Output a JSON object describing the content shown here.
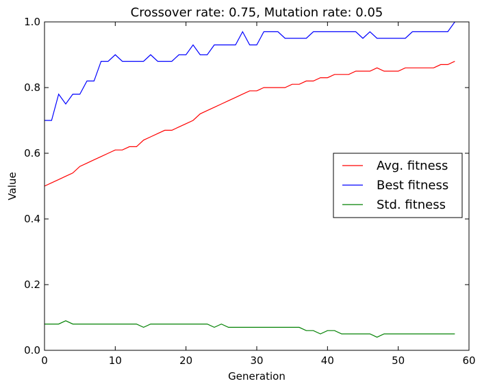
{
  "chart_data": {
    "type": "line",
    "title": "Crossover rate: 0.75, Mutation rate: 0.05",
    "xlabel": "Generation",
    "ylabel": "Value",
    "xlim": [
      0,
      60
    ],
    "ylim": [
      0.0,
      1.0
    ],
    "xticks": [
      0,
      10,
      20,
      30,
      40,
      50,
      60
    ],
    "yticks": [
      0.0,
      0.2,
      0.4,
      0.6,
      0.8,
      1.0
    ],
    "xtick_labels": [
      "0",
      "10",
      "20",
      "30",
      "40",
      "50",
      "60"
    ],
    "ytick_labels": [
      "0.0",
      "0.2",
      "0.4",
      "0.6",
      "0.8",
      "1.0"
    ],
    "grid": false,
    "legend_position": "center-right",
    "x": [
      0,
      1,
      2,
      3,
      4,
      5,
      6,
      7,
      8,
      9,
      10,
      11,
      12,
      13,
      14,
      15,
      16,
      17,
      18,
      19,
      20,
      21,
      22,
      23,
      24,
      25,
      26,
      27,
      28,
      29,
      30,
      31,
      32,
      33,
      34,
      35,
      36,
      37,
      38,
      39,
      40,
      41,
      42,
      43,
      44,
      45,
      46,
      47,
      48,
      49,
      50,
      51,
      52,
      53,
      54,
      55,
      56,
      57,
      58
    ],
    "series": [
      {
        "name": "Avg. fitness",
        "color": "#ff0000",
        "values": [
          0.5,
          0.51,
          0.52,
          0.53,
          0.54,
          0.56,
          0.57,
          0.58,
          0.59,
          0.6,
          0.61,
          0.61,
          0.62,
          0.62,
          0.64,
          0.65,
          0.66,
          0.67,
          0.67,
          0.68,
          0.69,
          0.7,
          0.72,
          0.73,
          0.74,
          0.75,
          0.76,
          0.77,
          0.78,
          0.79,
          0.79,
          0.8,
          0.8,
          0.8,
          0.8,
          0.81,
          0.81,
          0.82,
          0.82,
          0.83,
          0.83,
          0.84,
          0.84,
          0.84,
          0.85,
          0.85,
          0.85,
          0.86,
          0.85,
          0.85,
          0.85,
          0.86,
          0.86,
          0.86,
          0.86,
          0.86,
          0.87,
          0.87,
          0.88
        ]
      },
      {
        "name": "Best fitness",
        "color": "#0000ff",
        "values": [
          0.7,
          0.7,
          0.78,
          0.75,
          0.78,
          0.78,
          0.82,
          0.82,
          0.88,
          0.88,
          0.9,
          0.88,
          0.88,
          0.88,
          0.88,
          0.9,
          0.88,
          0.88,
          0.88,
          0.9,
          0.9,
          0.93,
          0.9,
          0.9,
          0.93,
          0.93,
          0.93,
          0.93,
          0.97,
          0.93,
          0.93,
          0.97,
          0.97,
          0.97,
          0.95,
          0.95,
          0.95,
          0.95,
          0.97,
          0.97,
          0.97,
          0.97,
          0.97,
          0.97,
          0.97,
          0.95,
          0.97,
          0.95,
          0.95,
          0.95,
          0.95,
          0.95,
          0.97,
          0.97,
          0.97,
          0.97,
          0.97,
          0.97,
          1.0
        ]
      },
      {
        "name": "Std. fitness",
        "color": "#008000",
        "values": [
          0.08,
          0.08,
          0.08,
          0.09,
          0.08,
          0.08,
          0.08,
          0.08,
          0.08,
          0.08,
          0.08,
          0.08,
          0.08,
          0.08,
          0.07,
          0.08,
          0.08,
          0.08,
          0.08,
          0.08,
          0.08,
          0.08,
          0.08,
          0.08,
          0.07,
          0.08,
          0.07,
          0.07,
          0.07,
          0.07,
          0.07,
          0.07,
          0.07,
          0.07,
          0.07,
          0.07,
          0.07,
          0.06,
          0.06,
          0.05,
          0.06,
          0.06,
          0.05,
          0.05,
          0.05,
          0.05,
          0.05,
          0.04,
          0.05,
          0.05,
          0.05,
          0.05,
          0.05,
          0.05,
          0.05,
          0.05,
          0.05,
          0.05,
          0.05
        ]
      }
    ]
  }
}
